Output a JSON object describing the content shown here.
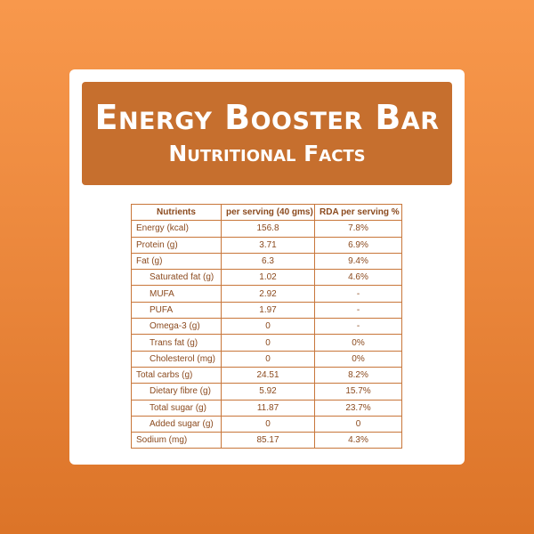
{
  "header": {
    "title": "Energy Booster Bar",
    "subtitle": "Nutritional Facts"
  },
  "table": {
    "columns": [
      "Nutrients",
      "per serving (40 gms)",
      "RDA per serving %"
    ],
    "rows": [
      [
        "Energy (kcal)",
        "156.8",
        "7.8%"
      ],
      [
        "Protein (g)",
        "3.71",
        "6.9%"
      ],
      [
        "Fat (g)",
        "6.3",
        "9.4%"
      ],
      [
        "Saturated fat (g)",
        "1.02",
        "4.6%"
      ],
      [
        "MUFA",
        "2.92",
        "-"
      ],
      [
        "PUFA",
        "1.97",
        "-"
      ],
      [
        "Omega-3 (g)",
        "0",
        "-"
      ],
      [
        "Trans fat (g)",
        "0",
        "0%"
      ],
      [
        "Cholesterol (mg)",
        "0",
        "0%"
      ],
      [
        "Total carbs (g)",
        "24.51",
        "8.2%"
      ],
      [
        "Dietary fibre (g)",
        "5.92",
        "15.7%"
      ],
      [
        "Total sugar (g)",
        "11.87",
        "23.7%"
      ],
      [
        "Added sugar (g)",
        "0",
        "0"
      ],
      [
        "Sodium (mg)",
        "85.17",
        "4.3%"
      ]
    ],
    "indented_rows": [
      3,
      4,
      5,
      6,
      7,
      8,
      10,
      11,
      12
    ]
  }
}
